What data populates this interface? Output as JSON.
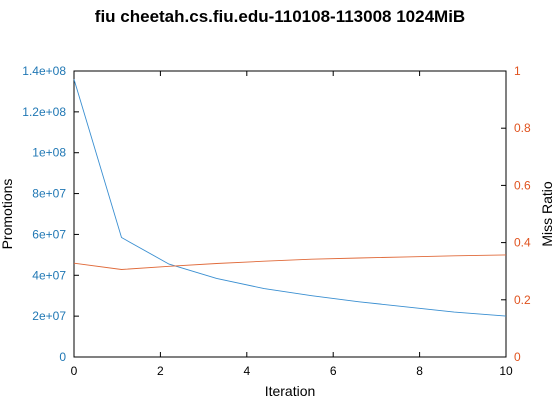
{
  "chart_data": {
    "type": "line",
    "title": "fiu cheetah.cs.fiu.edu-110108-113008 1024MiB",
    "xlabel": "Iteration",
    "ylabel": "Promotions",
    "y2label": "Miss Ratio",
    "xlim": [
      0,
      10
    ],
    "ylim": [
      0,
      140000000
    ],
    "y2lim": [
      0,
      1
    ],
    "x_ticks": [
      "0",
      "2",
      "4",
      "6",
      "8",
      "10"
    ],
    "x_tick_values": [
      0,
      2,
      4,
      6,
      8,
      10
    ],
    "y_ticks": [
      "0",
      "2e+07",
      "4e+07",
      "6e+07",
      "8e+07",
      "1e+08",
      "1.2e+08",
      "1.4e+08"
    ],
    "y_tick_values": [
      0,
      20000000,
      40000000,
      60000000,
      80000000,
      100000000,
      120000000,
      140000000
    ],
    "y2_ticks": [
      "0",
      "0.2",
      "0.4",
      "0.6",
      "0.8",
      "1"
    ],
    "y2_tick_values": [
      0,
      0.2,
      0.4,
      0.6,
      0.8,
      1
    ],
    "grid": false,
    "series": [
      {
        "axis": "left",
        "color": "#3a8fd1",
        "x": [
          0,
          1.1,
          2.2,
          3.3,
          4.4,
          5.5,
          6.6,
          7.7,
          8.8,
          10
        ],
        "y": [
          136000000,
          58500000,
          45500000,
          38500000,
          33500000,
          30000000,
          27000000,
          24500000,
          22000000,
          20000000
        ]
      },
      {
        "axis": "right",
        "color": "#e06a3a",
        "x": [
          0,
          1.1,
          2.2,
          3.3,
          4.4,
          5.5,
          6.6,
          7.7,
          8.8,
          10
        ],
        "y": [
          0.328,
          0.306,
          0.317,
          0.327,
          0.335,
          0.342,
          0.346,
          0.35,
          0.354,
          0.357
        ]
      }
    ],
    "axis_colors": {
      "left": "#1f77b4",
      "right": "#e0531f",
      "bottom": "#000000"
    }
  }
}
